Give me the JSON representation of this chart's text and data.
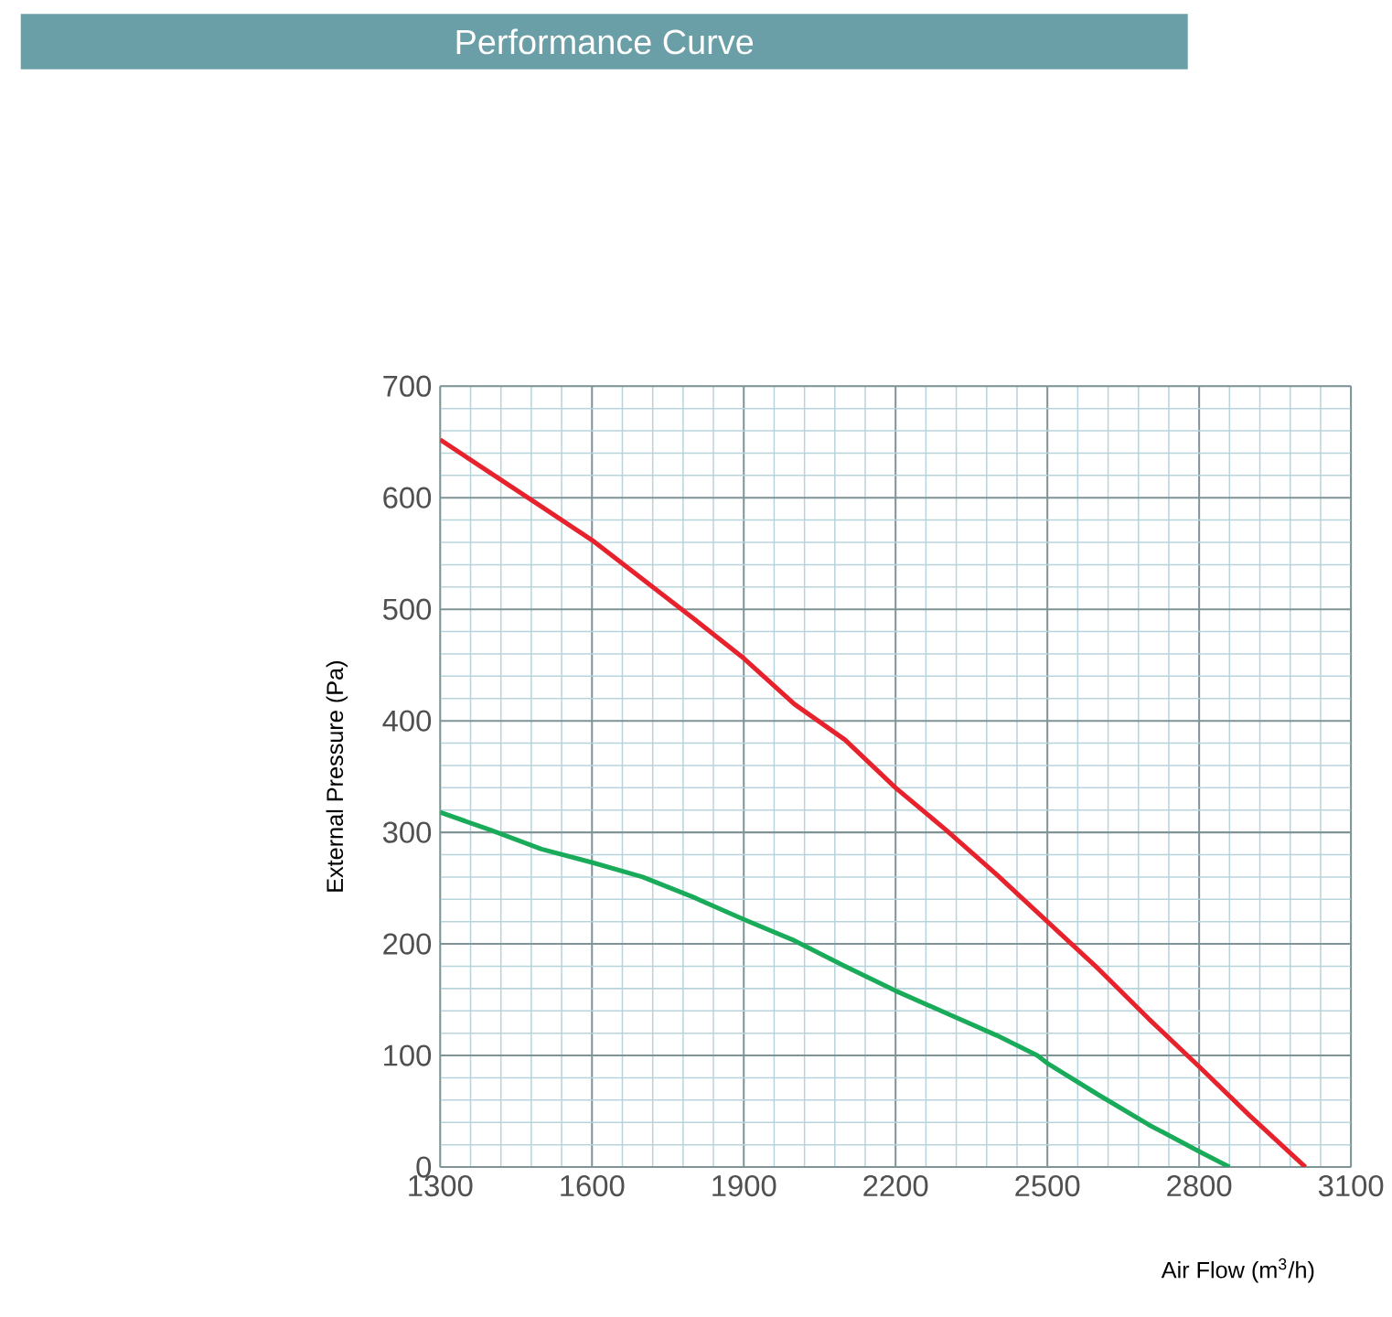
{
  "chart_data": {
    "type": "line",
    "title": "Performance Curve",
    "xlabel": "Air Flow (m$^{3}$/h)",
    "ylabel": "External Pressure (Pa)",
    "xlim": [
      1300,
      3100
    ],
    "ylim": [
      0,
      700
    ],
    "xticks": [
      1300,
      1600,
      1900,
      2200,
      2500,
      2800,
      3100
    ],
    "yticks": [
      0,
      100,
      200,
      300,
      400,
      500,
      600,
      700
    ],
    "grid": true,
    "series": [
      {
        "color": "#1aab5a",
        "x": [
          1300,
          1400,
          1500,
          1600,
          1700,
          1800,
          1900,
          2000,
          2100,
          2200,
          2300,
          2400,
          2480,
          2500,
          2600,
          2700,
          2800,
          2860
        ],
        "values": [
          318,
          302,
          285,
          273,
          260,
          242,
          222,
          203,
          180,
          158,
          138,
          118,
          100,
          93,
          65,
          38,
          14,
          0
        ]
      },
      {
        "color": "#e8222c",
        "x": [
          1300,
          1400,
          1500,
          1600,
          1700,
          1800,
          1900,
          2000,
          2100,
          2200,
          2300,
          2400,
          2500,
          2600,
          2700,
          2800,
          2900,
          3010
        ],
        "values": [
          652,
          622,
          592,
          562,
          527,
          492,
          456,
          415,
          383,
          340,
          302,
          262,
          220,
          178,
          133,
          90,
          46,
          0
        ]
      }
    ]
  }
}
